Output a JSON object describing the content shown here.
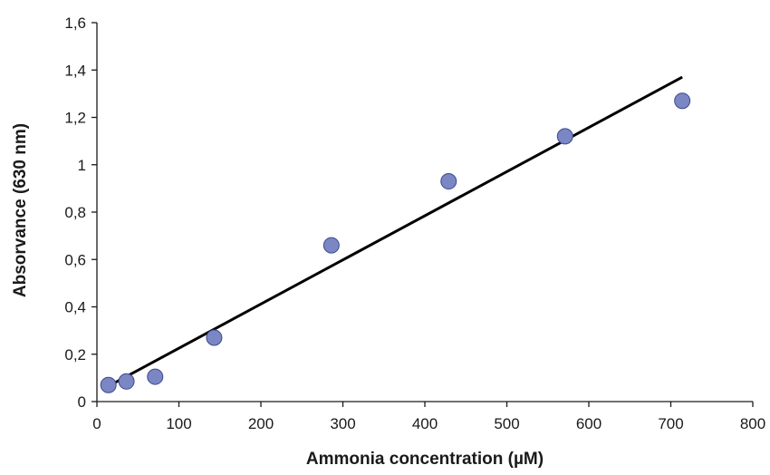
{
  "chart_data": {
    "type": "scatter",
    "title": "",
    "xlabel": "Ammonia concentration (µM)",
    "ylabel": "Absorvance (630 nm)",
    "xlim": [
      0,
      800
    ],
    "ylim": [
      0,
      1.6
    ],
    "x_ticks": [
      0,
      100,
      200,
      300,
      400,
      500,
      600,
      700,
      800
    ],
    "x_tick_labels": [
      "0",
      "100",
      "200",
      "300",
      "400",
      "500",
      "600",
      "700",
      "800"
    ],
    "y_ticks": [
      0,
      0.2,
      0.4,
      0.6,
      0.8,
      1.0,
      1.2,
      1.4,
      1.6
    ],
    "y_tick_labels": [
      "0",
      "0,2",
      "0,4",
      "0,6",
      "0,8",
      "1",
      "1,2",
      "1,4",
      "1,6"
    ],
    "grid": false,
    "legend": "none",
    "series": [
      {
        "type": "scatter",
        "color": "#7b86c4",
        "edge_color": "#3d4a8c",
        "points": [
          {
            "x": 14,
            "y": 0.07
          },
          {
            "x": 36,
            "y": 0.085
          },
          {
            "x": 71,
            "y": 0.105
          },
          {
            "x": 143,
            "y": 0.27
          },
          {
            "x": 286,
            "y": 0.66
          },
          {
            "x": 429,
            "y": 0.93
          },
          {
            "x": 571,
            "y": 1.12
          },
          {
            "x": 714,
            "y": 1.27
          }
        ]
      },
      {
        "type": "line",
        "color": "#000000",
        "points": [
          {
            "x": 14,
            "y": 0.065
          },
          {
            "x": 714,
            "y": 1.37
          }
        ]
      }
    ]
  }
}
